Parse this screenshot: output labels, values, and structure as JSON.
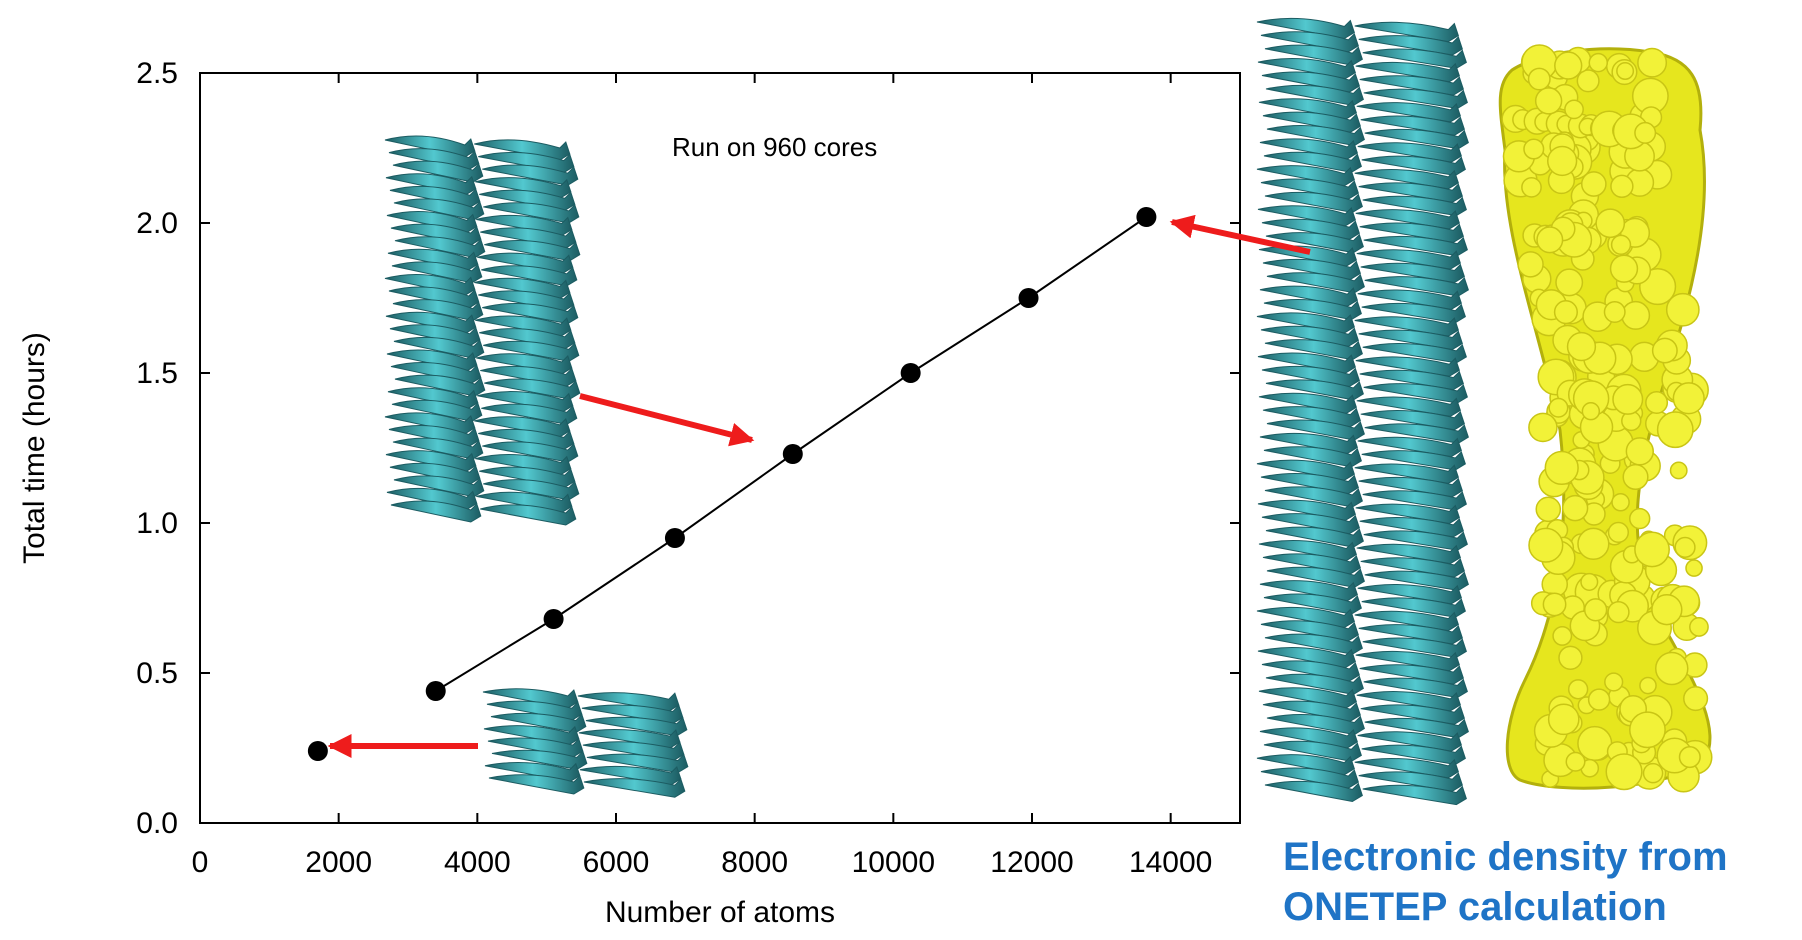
{
  "chart_data": {
    "type": "scatter",
    "title": "",
    "xlabel": "Number of atoms",
    "ylabel": "Total time (hours)",
    "xlim": [
      0,
      15000
    ],
    "ylim": [
      0,
      2.5
    ],
    "xticks": [
      0,
      2000,
      4000,
      6000,
      8000,
      10000,
      12000,
      14000
    ],
    "yticks": [
      "0.0",
      "0.5",
      "1.0",
      "1.5",
      "2.0",
      "2.5"
    ],
    "grid": false,
    "annotation": "Run on 960 cores",
    "series": [
      {
        "points": [
          [
            1700,
            0.24
          ],
          [
            3400,
            0.44
          ],
          [
            5100,
            0.68
          ],
          [
            6850,
            0.95
          ],
          [
            8550,
            1.23
          ],
          [
            10250,
            1.5
          ],
          [
            11950,
            1.75
          ],
          [
            13650,
            2.02
          ]
        ],
        "line": [
          3400,
          13650
        ],
        "marker": "filled-circle",
        "color": "#000000"
      }
    ]
  },
  "caption": {
    "line1": "Electronic density from",
    "line2": "ONETEP calculation"
  },
  "colors": {
    "ribbon_dark": "#1c5c62",
    "ribbon_light": "#52c8cf",
    "density": "#e6e61e",
    "arrow": "#ee1c1c",
    "caption": "#1f74c6"
  },
  "images": {
    "small_structure": "protein-ribbon-small",
    "medium_structure": "protein-ribbon-medium",
    "large_structure": "protein-ribbon-large",
    "density_surface": "electron-density-surface"
  }
}
